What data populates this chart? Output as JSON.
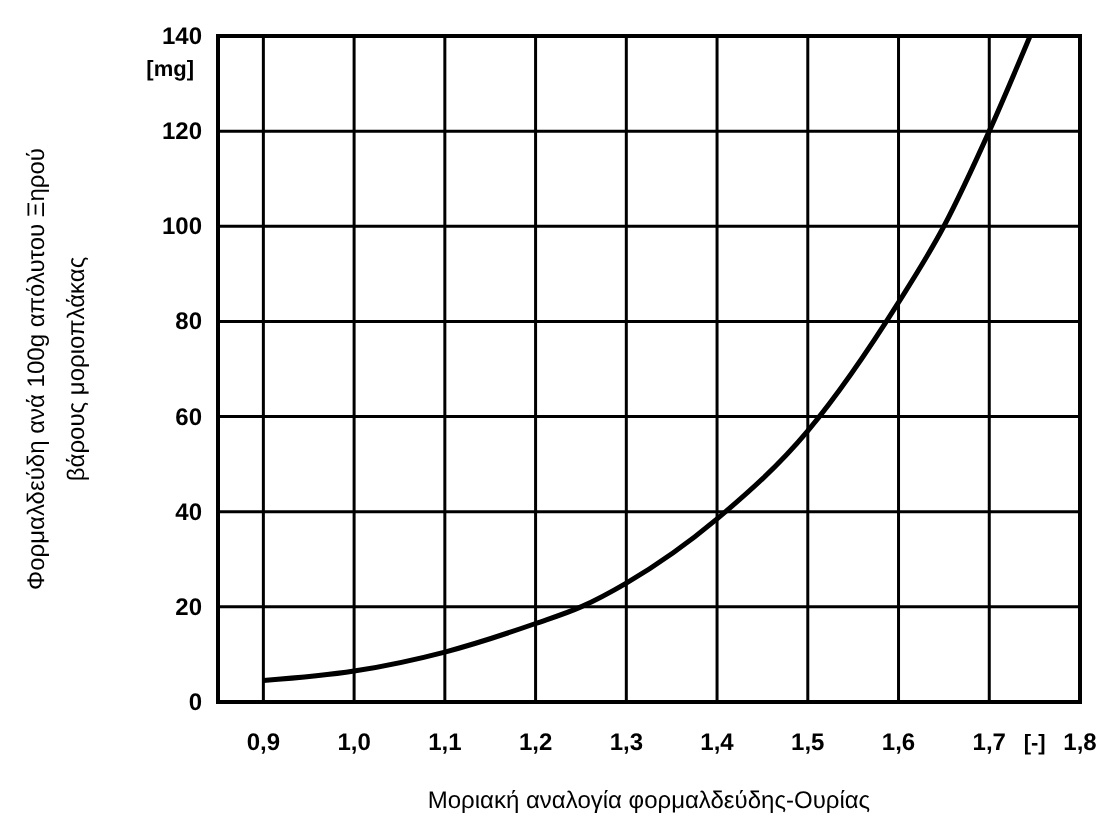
{
  "chart_data": {
    "type": "line",
    "xlabel": "Μοριακή αναλογία φορμαλδεύδης-Ουρίας",
    "ylabel": "Φορμαλδεύδη ανά 100g απόλυτου Ξηρού\nβάρους μοριοπλάκας",
    "x": [
      0.9,
      1.0,
      1.1,
      1.2,
      1.25,
      1.3,
      1.4,
      1.5,
      1.6,
      1.65,
      1.7,
      1.745
    ],
    "series": [
      {
        "color": "#000000",
        "values": [
          4.5,
          6.5,
          10.5,
          16.5,
          20,
          25,
          38.5,
          57,
          84,
          100,
          120,
          140
        ]
      }
    ],
    "xlim": [
      0.85,
      1.8
    ],
    "ylim": [
      0,
      140
    ],
    "xticks": [
      {
        "value": 0.9,
        "label": "0,9"
      },
      {
        "value": 1.0,
        "label": "1,0"
      },
      {
        "value": 1.1,
        "label": "1,1"
      },
      {
        "value": 1.2,
        "label": "1,2"
      },
      {
        "value": 1.3,
        "label": "1,3"
      },
      {
        "value": 1.4,
        "label": "1,4"
      },
      {
        "value": 1.5,
        "label": "1,5"
      },
      {
        "value": 1.6,
        "label": "1,6"
      },
      {
        "value": 1.7,
        "label": "1,7"
      },
      {
        "value": 1.8,
        "label": "1,8"
      }
    ],
    "yticks": [
      0,
      20,
      40,
      60,
      80,
      100,
      120,
      140
    ],
    "annotations": [
      "[mg]",
      "[-]"
    ],
    "grid": true,
    "marker": "none",
    "line_style": "solid"
  }
}
